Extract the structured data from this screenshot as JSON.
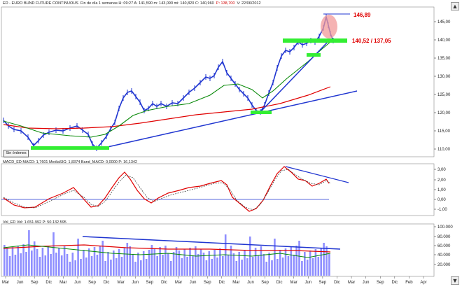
{
  "price_pane": {
    "title_parts": {
      "code": "ED - EURO BUND FUTURE CONTINUOUS",
      "info": "Fin de día 1 semanas  H: 09:27  A: 141,590  m: 143,090  mi: 140,820  C: 140,960",
      "p_value": "P: 138,700",
      "date": "V: 22/06/2012"
    },
    "annotations": {
      "peak": "146,89",
      "support": "140,52 / 137,05"
    },
    "y_ticks": [
      "145,00",
      "140,00",
      "135,00",
      "130,00",
      "125,00",
      "120,00",
      "115,00",
      "110,00"
    ],
    "left_button": "Sin órdenes"
  },
  "macd_pane": {
    "title": "MACD_ED  MACD: 1,7601  MediaSIG: 1,8374  Band_MACD: 0,0000  P: 16,1342",
    "y_ticks": [
      "3,00",
      "2,00",
      "1,00",
      "0,00",
      "-1,00"
    ]
  },
  "volume_pane": {
    "title": "Vol_ED  Vol: 1.651.992  P: 50.132.595",
    "y_ticks": [
      "100.000",
      "80.000",
      "60.000",
      "40.000",
      "20.000"
    ]
  },
  "x_axis": {
    "labels": [
      "Mar",
      "Jun",
      "Sep",
      "Dic",
      "Mar",
      "Jun",
      "Sep",
      "Dic",
      "Mar",
      "Jun",
      "Sep",
      "Dic",
      "Mar",
      "Jun",
      "Sep",
      "Dic",
      "Mar",
      "Jun",
      "Sep",
      "Dic",
      "Mar",
      "Jun",
      "Sep",
      "Dic",
      "Mar",
      "Jun",
      "Sep",
      "Dic",
      "Feb",
      "Apr"
    ]
  },
  "colors": {
    "price": "#1f35d0",
    "macd": "#e00000",
    "signal": "#444444",
    "ma_short": "#0a8a0a",
    "ma_long": "#e00000",
    "trend": "#1f35d0",
    "highlight": "#33ee33",
    "circle": "#f29a9a"
  }
}
